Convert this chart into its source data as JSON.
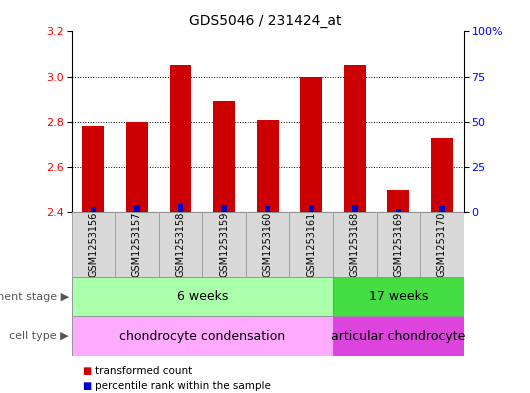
{
  "title": "GDS5046 / 231424_at",
  "samples": [
    "GSM1253156",
    "GSM1253157",
    "GSM1253158",
    "GSM1253159",
    "GSM1253160",
    "GSM1253161",
    "GSM1253168",
    "GSM1253169",
    "GSM1253170"
  ],
  "transformed_count": [
    2.78,
    2.8,
    3.05,
    2.89,
    2.81,
    3.0,
    3.05,
    2.5,
    2.73
  ],
  "percentile_rank": [
    3.0,
    4.0,
    4.5,
    4.0,
    3.5,
    4.0,
    4.0,
    2.0,
    3.5
  ],
  "ylim_left": [
    2.4,
    3.2
  ],
  "ylim_right": [
    0,
    100
  ],
  "yticks_left": [
    2.4,
    2.6,
    2.8,
    3.0,
    3.2
  ],
  "yticks_right": [
    0,
    25,
    50,
    75,
    100
  ],
  "bar_color_red": "#cc0000",
  "bar_color_blue": "#0000cc",
  "bar_width": 0.5,
  "n_group1": 6,
  "n_group2": 3,
  "group1_label": "6 weeks",
  "group2_label": "17 weeks",
  "group1_color": "#aaffaa",
  "group2_color": "#44dd44",
  "ct1_label": "chondrocyte condensation",
  "ct2_label": "articular chondrocyte",
  "ct1_color": "#ffaaff",
  "ct2_color": "#dd44dd",
  "dev_stage_label": "development stage",
  "cell_type_label": "cell type",
  "legend_red": "transformed count",
  "legend_blue": "percentile rank within the sample",
  "title_fontsize": 10,
  "tick_fontsize": 8,
  "background_color": "#ffffff"
}
